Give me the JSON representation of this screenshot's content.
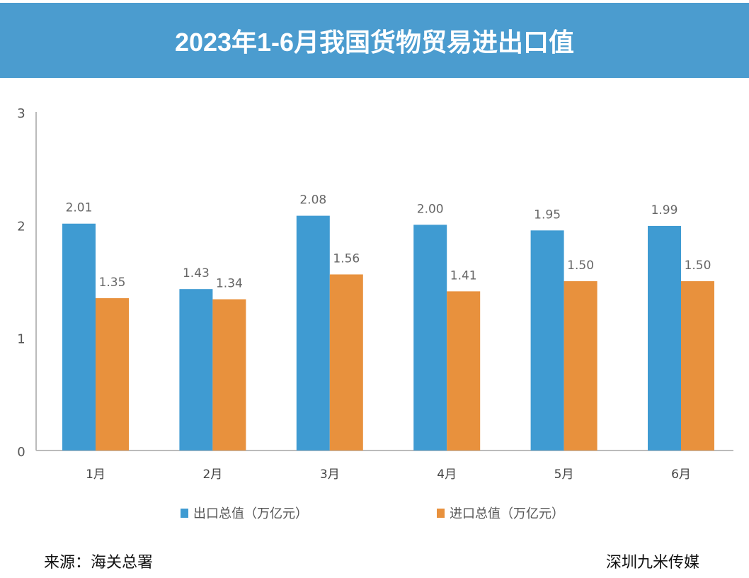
{
  "title": "2023年1-6月我国货物贸易进出口值",
  "chart_data": {
    "type": "bar",
    "title": "2023年1-6月我国货物贸易进出口值",
    "categories": [
      "1月",
      "2月",
      "3月",
      "4月",
      "5月",
      "6月"
    ],
    "series": [
      {
        "name": "出口总值（万亿元）",
        "color": "#3f9bd2",
        "values": [
          2.01,
          1.43,
          2.08,
          2.0,
          1.95,
          1.99
        ],
        "labels": [
          "2.01",
          "1.43",
          "2.08",
          "2.00",
          "1.95",
          "1.99"
        ]
      },
      {
        "name": "进口总值（万亿元）",
        "color": "#e8913d",
        "values": [
          1.35,
          1.34,
          1.56,
          1.41,
          1.5,
          1.5
        ],
        "labels": [
          "1.35",
          "1.34",
          "1.56",
          "1.41",
          "1.50",
          "1.50"
        ]
      }
    ],
    "ylim": [
      0,
      3
    ],
    "yticks": [
      "0",
      "1",
      "2",
      "3"
    ],
    "grid": false,
    "legend": "bottom"
  },
  "footer": {
    "source": "来源：海关总署",
    "credit": "深圳九米传媒"
  }
}
